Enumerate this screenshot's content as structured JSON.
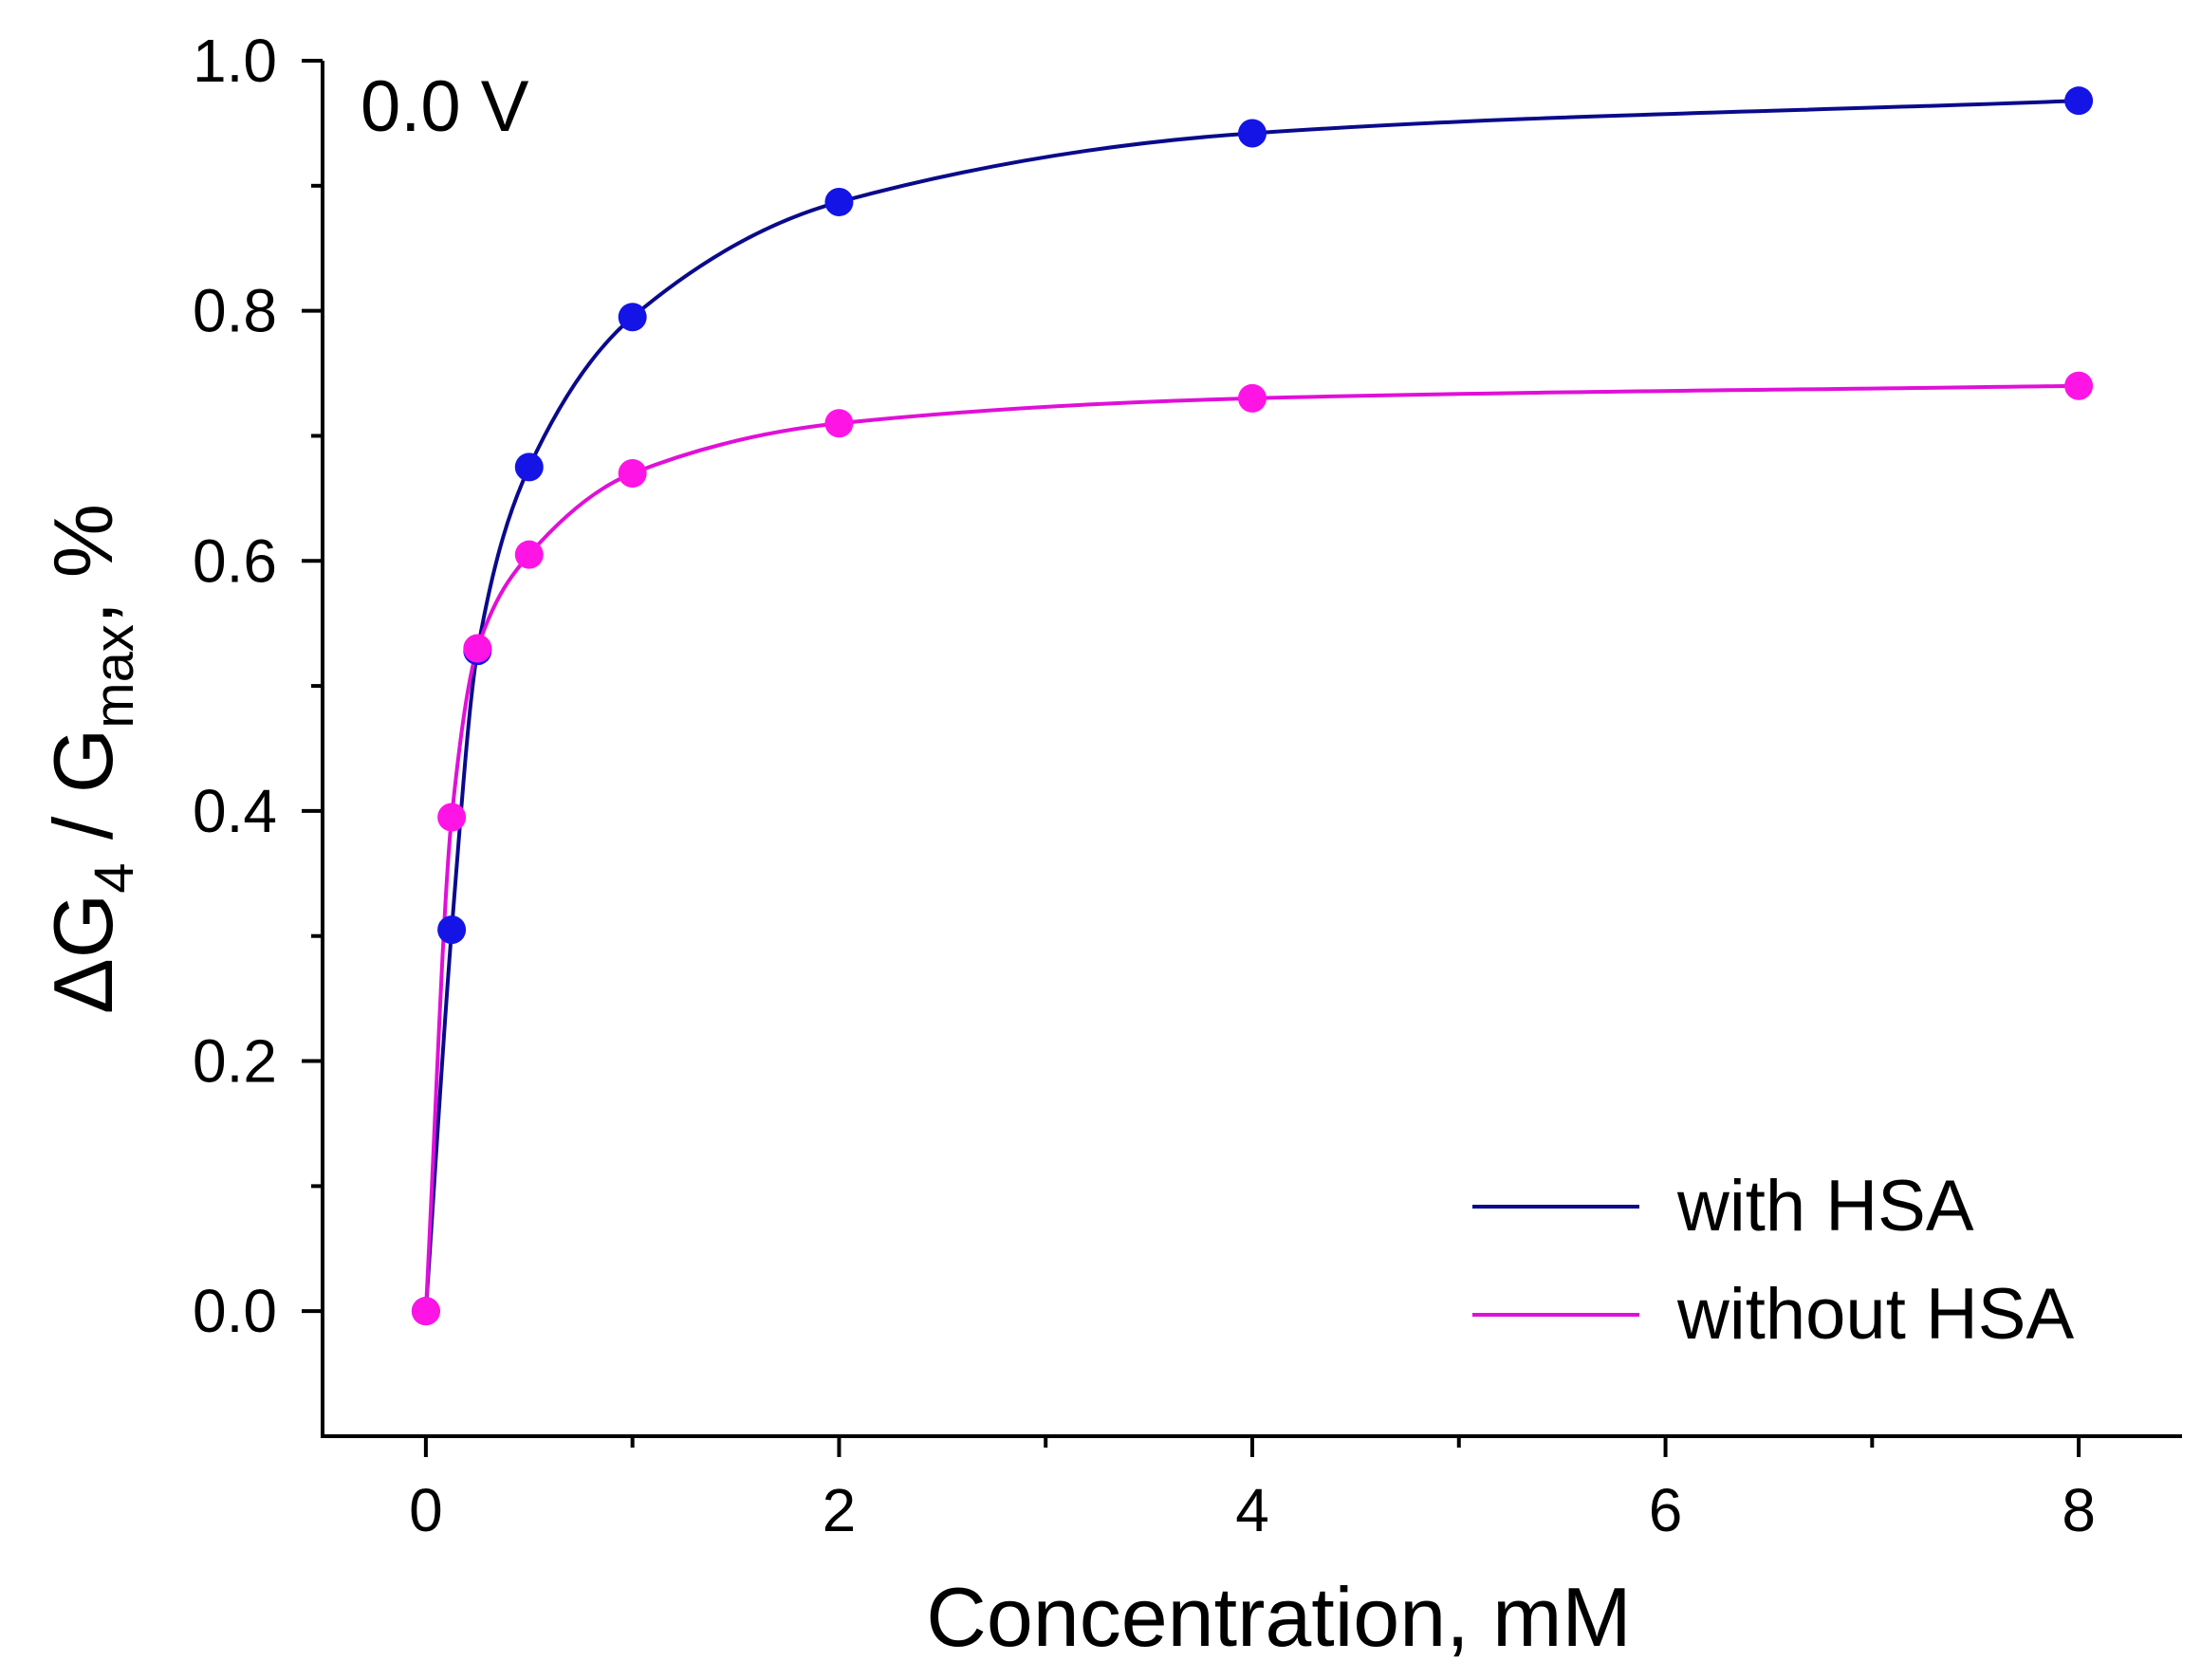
{
  "chart_data": {
    "type": "scatter",
    "title": "",
    "annotation": "0.0 V",
    "xlabel": "Concentration, mM",
    "ylabel": {
      "prefix": "ΔG",
      "sub1": "4",
      "middle": " / G",
      "sub2": "max",
      "suffix": ", %"
    },
    "xlim": [
      -0.5,
      8.5
    ],
    "ylim": [
      -0.1,
      1.0
    ],
    "x_ticks": [
      0,
      2,
      4,
      6,
      8
    ],
    "x_tick_labels": [
      "0",
      "2",
      "4",
      "6",
      "8"
    ],
    "x_minor_ticks": [
      1,
      3,
      5,
      7
    ],
    "y_ticks": [
      0.0,
      0.2,
      0.4,
      0.6,
      0.8,
      1.0
    ],
    "y_tick_labels": [
      "0.0",
      "0.2",
      "0.4",
      "0.6",
      "0.8",
      "1.0"
    ],
    "y_minor_ticks": [
      0.1,
      0.3,
      0.5,
      0.7,
      0.9
    ],
    "grid": false,
    "legend_position": "bottom-right",
    "series": [
      {
        "name": "with HSA",
        "color": "#0a0a8c",
        "marker_color": "#1414e6",
        "x": [
          0,
          0.125,
          0.25,
          0.5,
          1,
          2,
          4,
          8
        ],
        "y": [
          0.0,
          0.305,
          0.528,
          0.675,
          0.795,
          0.887,
          0.942,
          0.968
        ]
      },
      {
        "name": "without HSA",
        "color": "#e010d8",
        "marker_color": "#ff14e6",
        "x": [
          0,
          0.125,
          0.25,
          0.5,
          1,
          2,
          4,
          8
        ],
        "y": [
          0.0,
          0.395,
          0.53,
          0.605,
          0.67,
          0.71,
          0.73,
          0.74
        ]
      }
    ]
  }
}
